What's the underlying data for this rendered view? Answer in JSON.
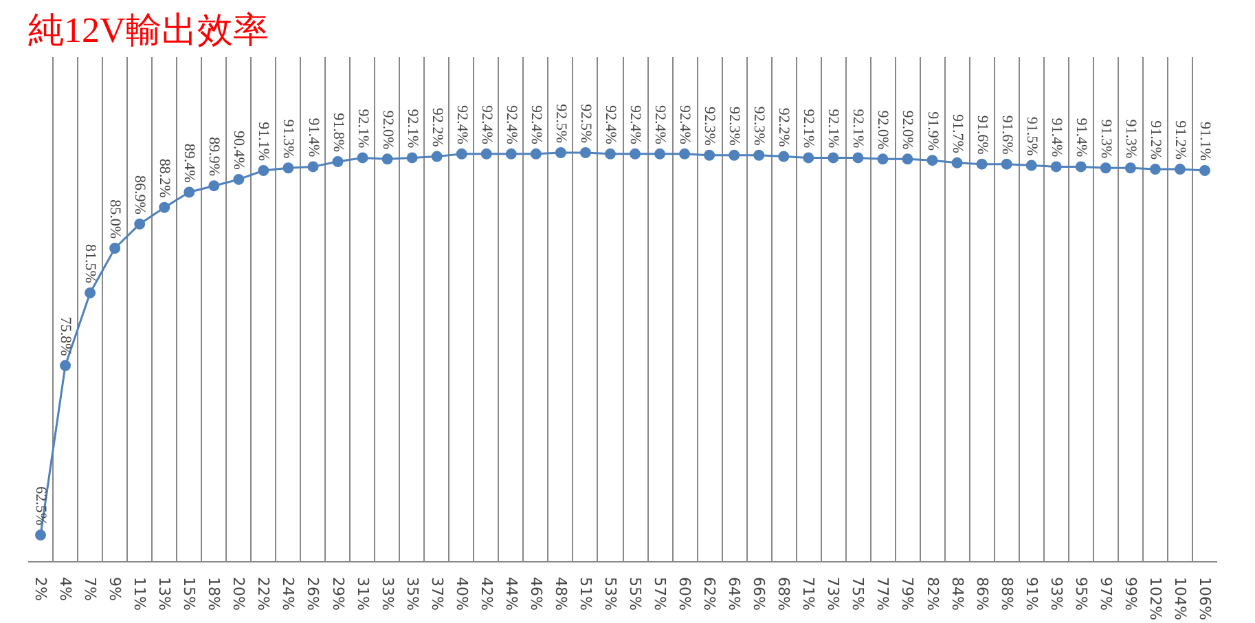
{
  "chart_data": {
    "type": "line",
    "title": "純12V輸出效率",
    "categories": [
      "2%",
      "4%",
      "7%",
      "9%",
      "11%",
      "13%",
      "15%",
      "18%",
      "20%",
      "22%",
      "24%",
      "26%",
      "29%",
      "31%",
      "33%",
      "35%",
      "37%",
      "40%",
      "42%",
      "44%",
      "46%",
      "48%",
      "51%",
      "53%",
      "55%",
      "57%",
      "60%",
      "62%",
      "64%",
      "66%",
      "68%",
      "71%",
      "73%",
      "75%",
      "77%",
      "79%",
      "82%",
      "84%",
      "86%",
      "88%",
      "91%",
      "93%",
      "95%",
      "97%",
      "99%",
      "102%",
      "104%",
      "106%"
    ],
    "series": [
      {
        "color": "#4f81bd",
        "values": [
          62.5,
          75.8,
          81.5,
          85.0,
          86.9,
          88.2,
          89.4,
          89.9,
          90.4,
          91.1,
          91.3,
          91.4,
          91.8,
          92.1,
          92.0,
          92.1,
          92.2,
          92.4,
          92.4,
          92.4,
          92.4,
          92.5,
          92.5,
          92.4,
          92.4,
          92.4,
          92.4,
          92.3,
          92.3,
          92.3,
          92.2,
          92.1,
          92.1,
          92.1,
          92.0,
          92.0,
          91.9,
          91.7,
          91.6,
          91.6,
          91.5,
          91.4,
          91.4,
          91.3,
          91.3,
          91.2,
          91.2,
          91.1
        ],
        "value_labels": [
          "62.5%",
          "75.8%",
          "81.5%",
          "85.0%",
          "86.9%",
          "88.2%",
          "89.4%",
          "89.9%",
          "90.4%",
          "91.1%",
          "91.3%",
          "91.4%",
          "91.8%",
          "92.1%",
          "92.0%",
          "92.1%",
          "92.2%",
          "92.4%",
          "92.4%",
          "92.4%",
          "92.4%",
          "92.5%",
          "92.5%",
          "92.4%",
          "92.4%",
          "92.4%",
          "92.4%",
          "92.3%",
          "92.3%",
          "92.3%",
          "92.2%",
          "92.1%",
          "92.1%",
          "92.1%",
          "92.0%",
          "92.0%",
          "91.9%",
          "91.7%",
          "91.6%",
          "91.6%",
          "91.5%",
          "91.4%",
          "91.4%",
          "91.3%",
          "91.3%",
          "91.2%",
          "91.2%",
          "91.1%"
        ]
      }
    ],
    "grid": "x",
    "marker": "circle",
    "line_style": "solid",
    "tick_labels": "x"
  }
}
